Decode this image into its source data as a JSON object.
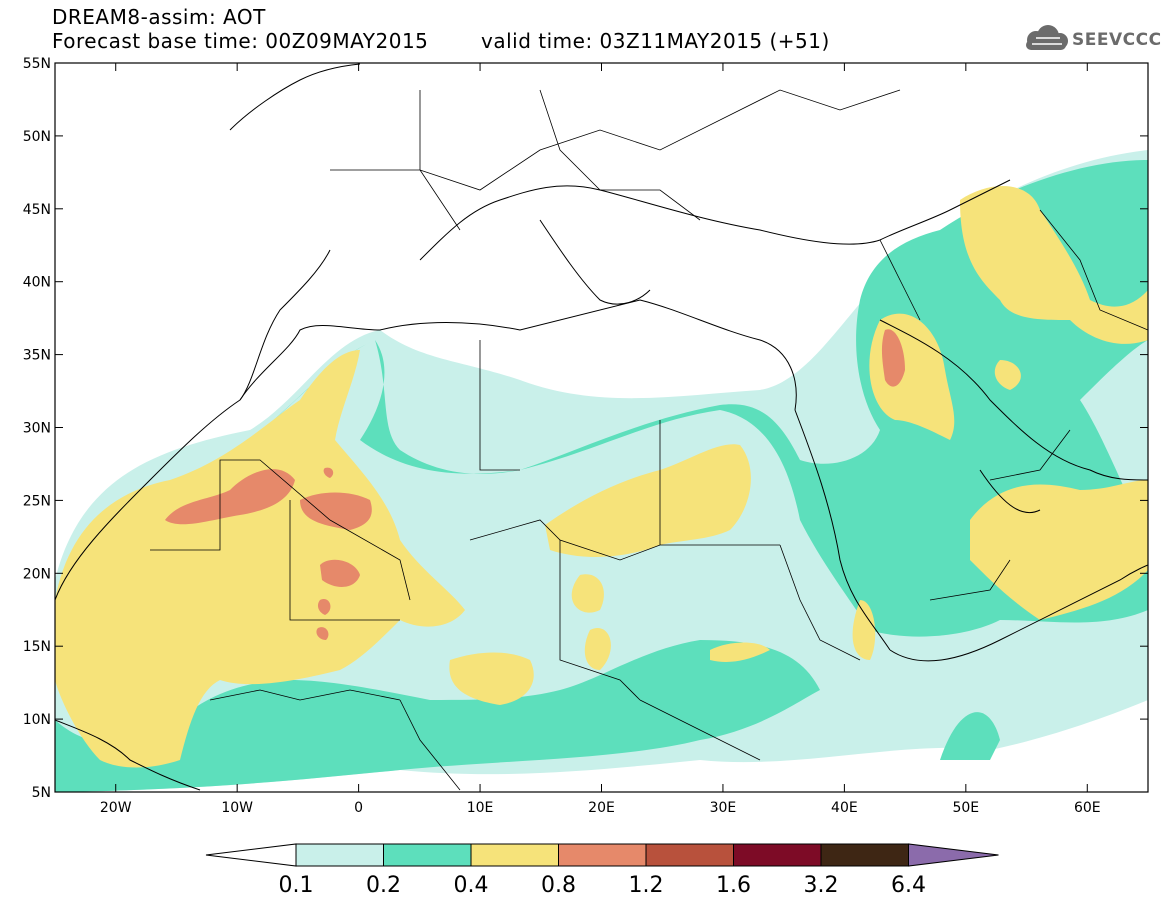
{
  "header": {
    "title": "DREAM8-assim: AOT",
    "base_time": "Forecast base time: 00Z09MAY2015",
    "valid_time": "valid time: 03Z11MAY2015 (+51)",
    "logo_text": "SEEVCCC"
  },
  "map": {
    "variable": "AOT",
    "lon_range": [
      -25,
      65
    ],
    "lat_range": [
      5,
      55
    ],
    "lat_ticks": [
      "5N",
      "10N",
      "15N",
      "20N",
      "25N",
      "30N",
      "35N",
      "40N",
      "45N",
      "50N",
      "55N"
    ],
    "lon_ticks": [
      "20W",
      "10W",
      "0",
      "10E",
      "20E",
      "30E",
      "40E",
      "50E",
      "60E"
    ],
    "colors": {
      "c01": "#c9f0ea",
      "c02": "#5ddfbc",
      "c04": "#f6e37a",
      "c08": "#e6896a",
      "c12": "#b8513c",
      "c16": "#7d0b26",
      "c32": "#3e2614",
      "c64": "#8b6bab"
    }
  },
  "colorbar": {
    "labels": [
      "0.1",
      "0.2",
      "0.4",
      "0.8",
      "1.2",
      "1.6",
      "3.2",
      "6.4"
    ],
    "colors": [
      "#c9f0ea",
      "#5ddfbc",
      "#f6e37a",
      "#e6896a",
      "#b8513c",
      "#7d0b26",
      "#3e2614",
      "#8b6bab"
    ]
  }
}
